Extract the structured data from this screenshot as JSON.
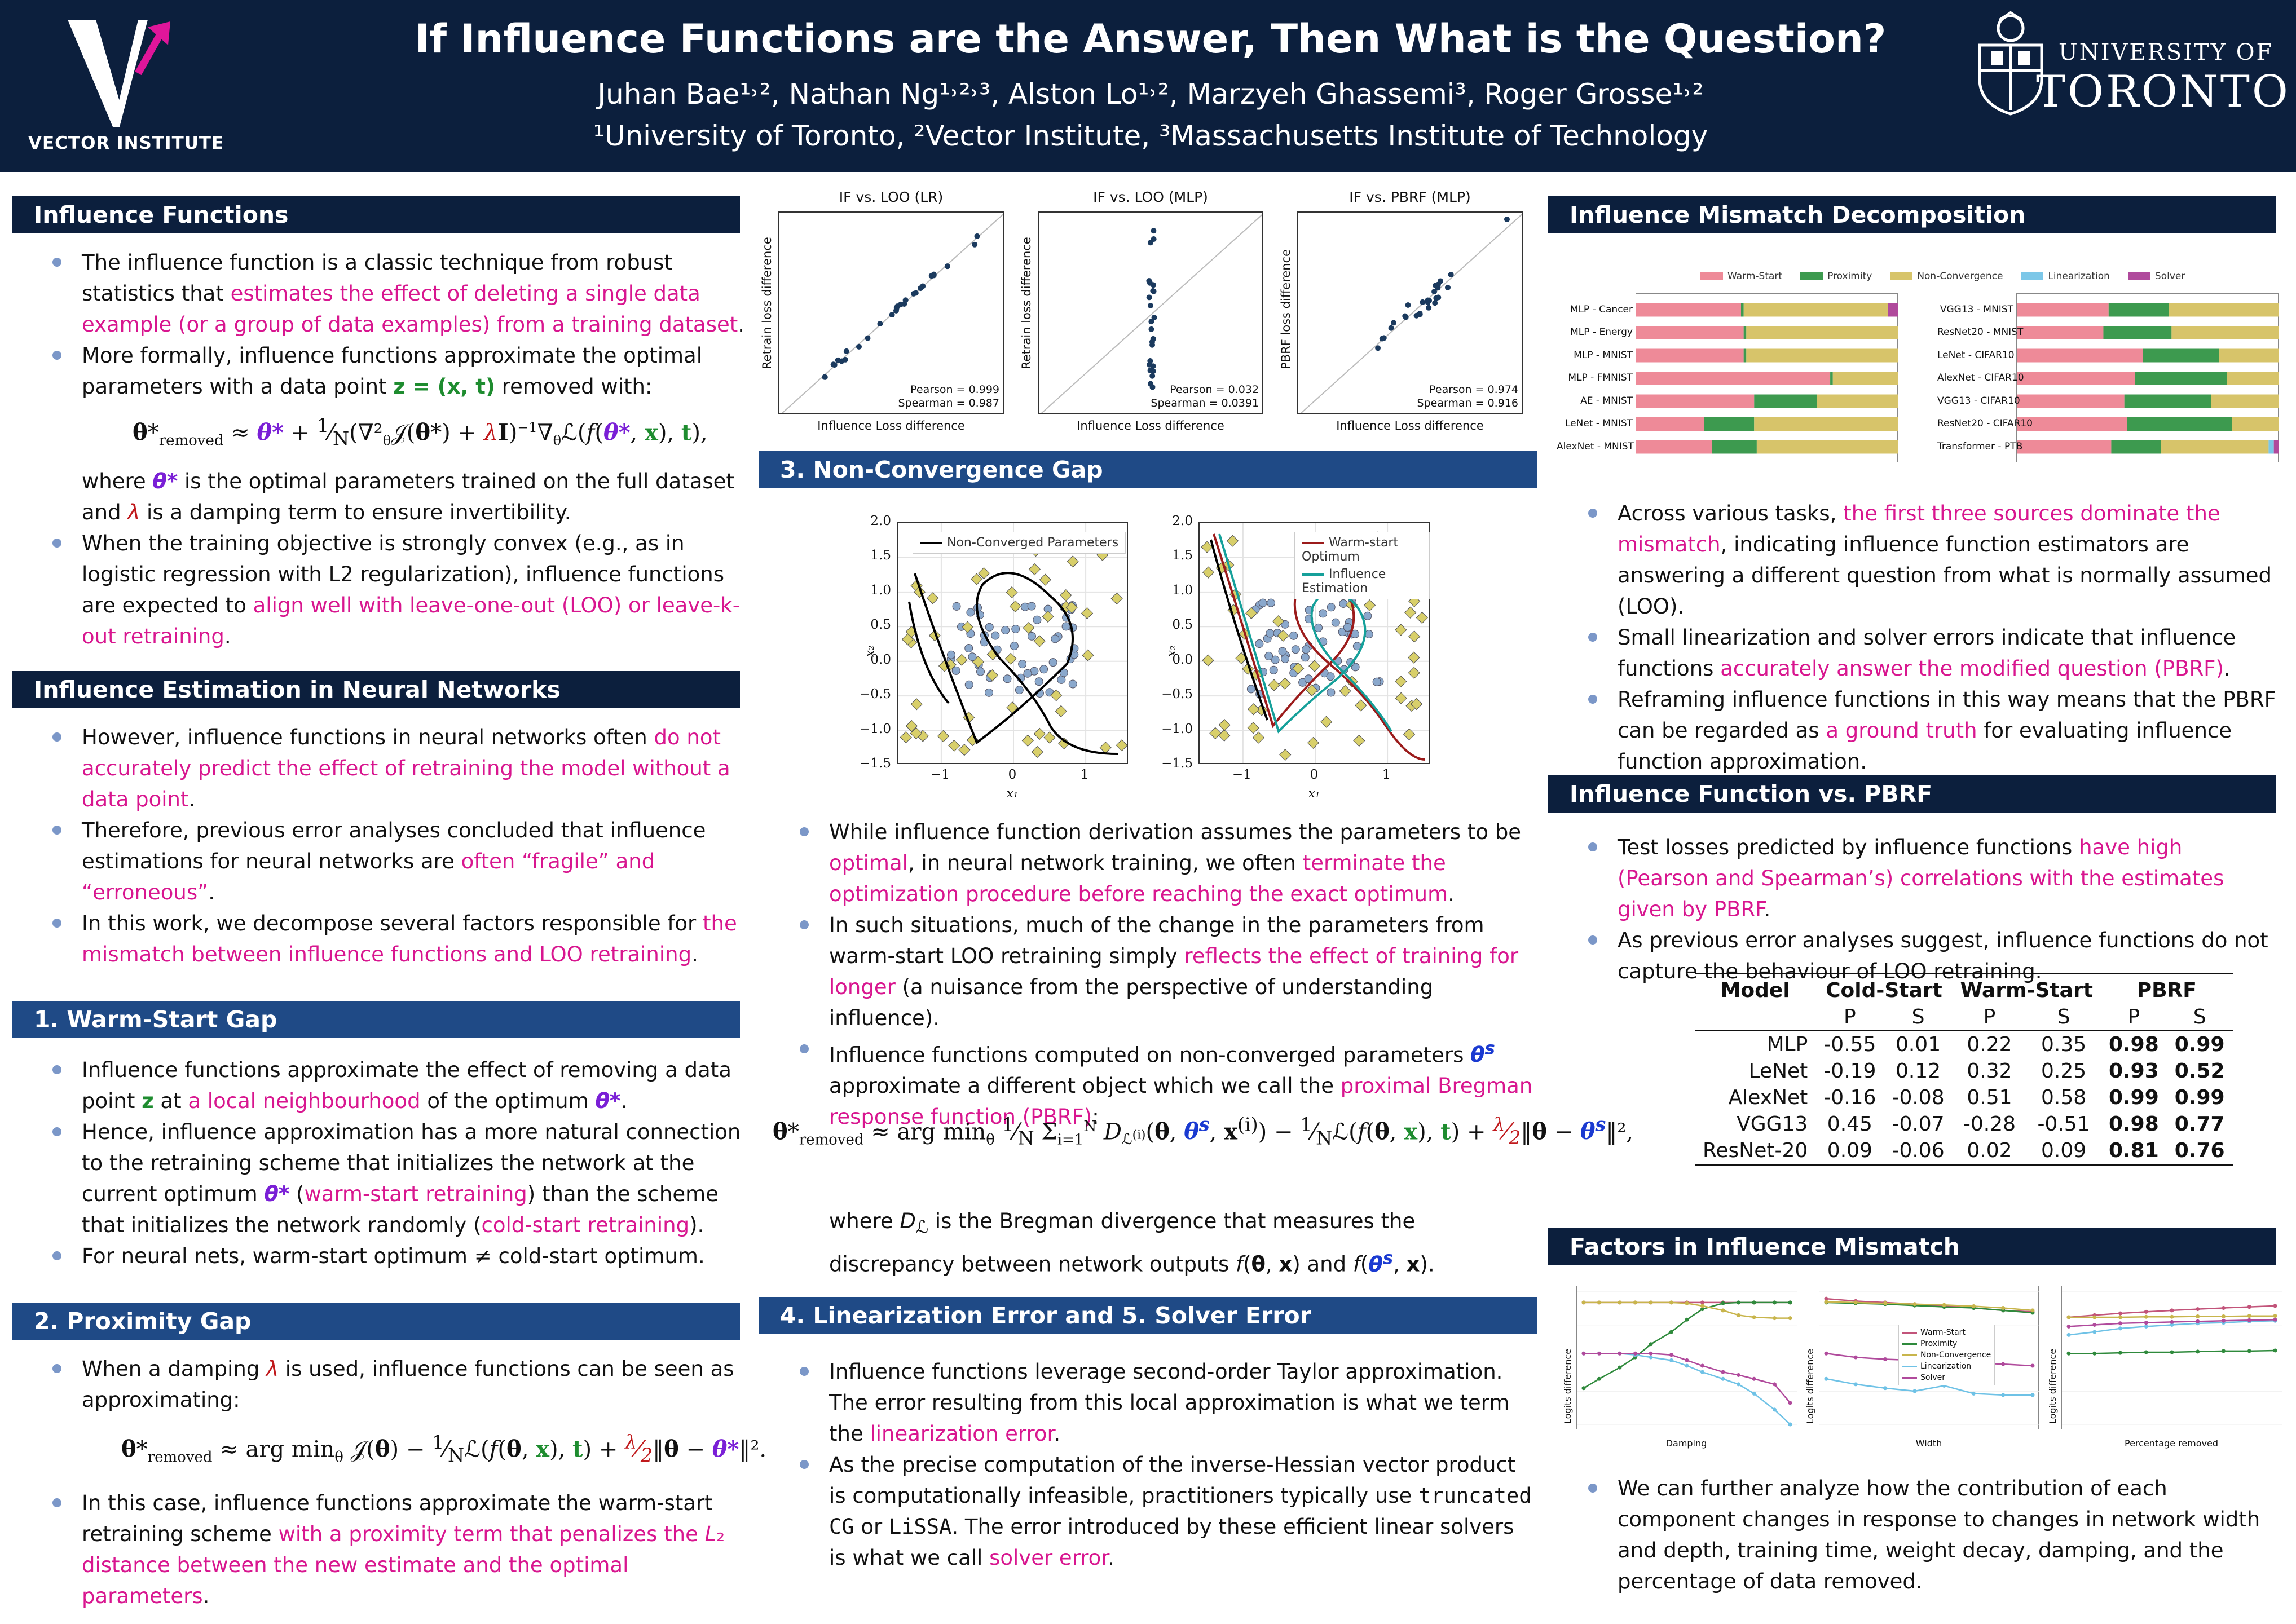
{
  "header": {
    "title": "If Influence Functions are the Answer, Then What is the Question?",
    "authors": "Juhan Bae¹˒², Nathan Ng¹˒²˒³, Alston Lo¹˒², Marzyeh Ghassemi³, Roger Grosse¹˒²",
    "affiliations": "¹University of Toronto, ²Vector Institute, ³Massachusetts Institute of Technology",
    "vector_label": "VECTOR INSTITUTE",
    "uoft_line1": "UNIVERSITY OF",
    "uoft_line2": "TORONTO"
  },
  "sections": {
    "s1": "Influence Functions",
    "s2": "Influence Estimation in Neural Networks",
    "s3": "1.  Warm-Start Gap",
    "s4": "2.  Proximity Gap",
    "s5": "3.  Non-Convergence Gap",
    "s6": "4.  Linearization Error and 5.  Solver Error",
    "s7": "Influence Mismatch Decomposition",
    "s8": "Influence Function vs.  PBRF",
    "s9": "Factors in Influence Mismatch"
  },
  "scatter_plots": [
    {
      "title": "IF vs.  LOO (LR)",
      "ylabel": "Retrain loss difference",
      "xlabel": "Influence Loss difference",
      "pearson": "Pearson = 0.999",
      "spearman": "Spearman = 0.987"
    },
    {
      "title": "IF vs.  LOO (MLP)",
      "ylabel": "Retrain loss difference",
      "xlabel": "Influence Loss difference",
      "pearson": "Pearson = 0.032",
      "spearman": "Spearman = 0.0391"
    },
    {
      "title": "IF vs.  PBRF (MLP)",
      "ylabel": "PBRF loss difference",
      "xlabel": "Influence Loss difference",
      "pearson": "Pearson = 0.974",
      "spearman": "Spearman = 0.916"
    }
  ],
  "contour_plots": [
    {
      "legend": [
        "Non-Converged Parameters"
      ],
      "xlabel": "x₁",
      "ylabel": "x₂",
      "yticks": [
        "2.0",
        "1.5",
        "1.0",
        "0.5",
        "0.0",
        "−0.5",
        "−1.0",
        "−1.5"
      ],
      "xticks": [
        "−1",
        "0",
        "1"
      ]
    },
    {
      "legend": [
        "Warm-start Optimum",
        "Influence Estimation"
      ],
      "xlabel": "x₁",
      "ylabel": "x₂",
      "yticks": [
        "2.0",
        "1.5",
        "1.0",
        "0.5",
        "0.0",
        "−0.5",
        "−1.0",
        "−1.5"
      ],
      "xticks": [
        "−1",
        "0",
        "1"
      ]
    }
  ],
  "chart_data": [
    {
      "type": "bar",
      "stacked": true,
      "orientation": "horizontal",
      "legend": [
        "Warm-Start",
        "Proximity",
        "Non-Convergence",
        "Linearization",
        "Solver"
      ],
      "colors": [
        "#ee8a98",
        "#3d9a4f",
        "#d7c46a",
        "#7cc7e8",
        "#b04a9c"
      ],
      "panels": [
        {
          "categories": [
            "MLP - Cancer",
            "MLP - Energy",
            "MLP - MNIST",
            "MLP - FMNIST",
            "AE - MNIST",
            "LeNet - MNIST",
            "AlexNet - MNIST"
          ],
          "series": [
            {
              "name": "Warm-Start",
              "values": [
                0.4,
                0.41,
                0.41,
                0.74,
                0.45,
                0.26,
                0.29
              ]
            },
            {
              "name": "Proximity",
              "values": [
                0.01,
                0.01,
                0.01,
                0.01,
                0.24,
                0.19,
                0.17
              ]
            },
            {
              "name": "Non-Convergence",
              "values": [
                0.55,
                0.58,
                0.58,
                0.25,
                0.31,
                0.55,
                0.54
              ]
            },
            {
              "name": "Linearization",
              "values": [
                0.0,
                0.0,
                0.0,
                0.0,
                0.0,
                0.0,
                0.0
              ]
            },
            {
              "name": "Solver",
              "values": [
                0.04,
                0.0,
                0.0,
                0.0,
                0.0,
                0.0,
                0.0
              ]
            }
          ]
        },
        {
          "categories": [
            "VGG13 - MNIST",
            "ResNet20 - MNIST",
            "LeNet - CIFAR10",
            "AlexNet - CIFAR10",
            "VGG13 - CIFAR10",
            "ResNet20 - CIFAR10",
            "Transformer - PTB"
          ],
          "series": [
            {
              "name": "Warm-Start",
              "values": [
                0.35,
                0.33,
                0.48,
                0.45,
                0.41,
                0.42,
                0.36
              ]
            },
            {
              "name": "Proximity",
              "values": [
                0.23,
                0.26,
                0.29,
                0.35,
                0.33,
                0.4,
                0.19
              ]
            },
            {
              "name": "Non-Convergence",
              "values": [
                0.42,
                0.41,
                0.23,
                0.2,
                0.26,
                0.18,
                0.41
              ]
            },
            {
              "name": "Linearization",
              "values": [
                0.0,
                0.0,
                0.0,
                0.0,
                0.0,
                0.0,
                0.02
              ]
            },
            {
              "name": "Solver",
              "values": [
                0.0,
                0.0,
                0.0,
                0.0,
                0.0,
                0.0,
                0.02
              ]
            }
          ]
        }
      ]
    },
    {
      "type": "line",
      "panels": [
        {
          "xlabel": "Damping",
          "ylabel": "Logits difference",
          "x": [
            1e-05,
            2e-05,
            5e-05,
            0.0001,
            0.0002,
            0.0005,
            0.001,
            0.002,
            0.005,
            0.01,
            0.02,
            0.05,
            0.1
          ],
          "series": [
            {
              "name": "Warm-Start",
              "values": [
                0.9,
                0.9,
                0.9,
                0.9,
                0.9,
                0.9,
                0.9,
                0.9,
                0.9,
                0.9,
                0.9,
                0.9,
                0.9
              ]
            },
            {
              "name": "Proximity",
              "values": [
                0.0015,
                0.003,
                0.007,
                0.015,
                0.04,
                0.1,
                0.25,
                0.55,
                0.85,
                0.9,
                0.9,
                0.9,
                0.9
              ]
            },
            {
              "name": "Non-Convergence",
              "values": [
                0.9,
                0.9,
                0.9,
                0.9,
                0.9,
                0.9,
                0.85,
                0.7,
                0.5,
                0.35,
                0.3,
                0.28,
                0.28
              ]
            },
            {
              "name": "Linearization",
              "values": [
                0.02,
                0.02,
                0.02,
                0.018,
                0.015,
                0.012,
                0.008,
                0.005,
                0.003,
                0.002,
                0.001,
                0.0003,
                0.0001
              ]
            },
            {
              "name": "Solver",
              "values": [
                0.02,
                0.02,
                0.02,
                0.02,
                0.02,
                0.018,
                0.012,
                0.008,
                0.005,
                0.004,
                0.003,
                0.002,
                0.0005
              ]
            }
          ]
        },
        {
          "xlabel": "Width",
          "ylabel": "Logits difference",
          "x": [
            8,
            16,
            32,
            64,
            128,
            256,
            512,
            1024
          ],
          "series": [
            {
              "name": "Warm-Start",
              "values": [
                1.2,
                1.0,
                0.9,
                0.8,
                0.7,
                0.6,
                0.5,
                0.45
              ]
            },
            {
              "name": "Proximity",
              "values": [
                0.9,
                0.85,
                0.8,
                0.72,
                0.65,
                0.6,
                0.5,
                0.42
              ]
            },
            {
              "name": "Non-Convergence",
              "values": [
                0.95,
                0.9,
                0.85,
                0.8,
                0.75,
                0.68,
                0.6,
                0.5
              ]
            },
            {
              "name": "Linearization",
              "values": [
                0.003,
                0.002,
                0.0015,
                0.0012,
                0.0018,
                0.001,
                0.0009,
                0.0009
              ]
            },
            {
              "name": "Solver",
              "values": [
                0.02,
                0.015,
                0.013,
                0.012,
                0.011,
                0.01,
                0.009,
                0.008
              ]
            }
          ]
        },
        {
          "xlabel": "Percentage removed",
          "ylabel": "Logits difference",
          "x": [
            0.1,
            0.2,
            0.3,
            0.4,
            0.5,
            0.6,
            0.7,
            0.8,
            0.9
          ],
          "series": [
            {
              "name": "Warm-Start",
              "values": [
                0.3,
                0.35,
                0.4,
                0.45,
                0.5,
                0.55,
                0.6,
                0.65,
                0.7
              ]
            },
            {
              "name": "Proximity",
              "values": [
                0.02,
                0.02,
                0.021,
                0.022,
                0.022,
                0.023,
                0.024,
                0.024,
                0.025
              ]
            },
            {
              "name": "Non-Convergence",
              "values": [
                0.3,
                0.3,
                0.3,
                0.31,
                0.31,
                0.32,
                0.32,
                0.33,
                0.33
              ]
            },
            {
              "name": "Linearization",
              "values": [
                0.08,
                0.1,
                0.13,
                0.15,
                0.17,
                0.19,
                0.2,
                0.22,
                0.23
              ]
            },
            {
              "name": "Solver",
              "values": [
                0.15,
                0.17,
                0.19,
                0.2,
                0.21,
                0.22,
                0.23,
                0.24,
                0.25
              ]
            }
          ]
        }
      ]
    }
  ],
  "table": {
    "header_model": "Model",
    "header_groups": [
      "Cold-Start",
      "Warm-Start",
      "PBRF"
    ],
    "sub": [
      "P",
      "S",
      "P",
      "S",
      "P",
      "S"
    ],
    "rows": [
      {
        "model": "MLP",
        "vals": [
          "-0.55",
          "0.01",
          "0.22",
          "0.35",
          "0.98",
          "0.99"
        ]
      },
      {
        "model": "LeNet",
        "vals": [
          "-0.19",
          "0.12",
          "0.32",
          "0.25",
          "0.93",
          "0.52"
        ]
      },
      {
        "model": "AlexNet",
        "vals": [
          "-0.16",
          "-0.08",
          "0.51",
          "0.58",
          "0.99",
          "0.99"
        ]
      },
      {
        "model": "VGG13",
        "vals": [
          "0.45",
          "-0.07",
          "-0.28",
          "-0.51",
          "0.98",
          "0.77"
        ]
      },
      {
        "model": "ResNet-20",
        "vals": [
          "0.09",
          "-0.06",
          "0.02",
          "0.09",
          "0.81",
          "0.76"
        ]
      }
    ]
  },
  "colors": {
    "header_bg": "#0c1f3d",
    "section_blue": "#1f4a86",
    "highlight": "#d8168f",
    "bullet": "#7b97c8"
  }
}
